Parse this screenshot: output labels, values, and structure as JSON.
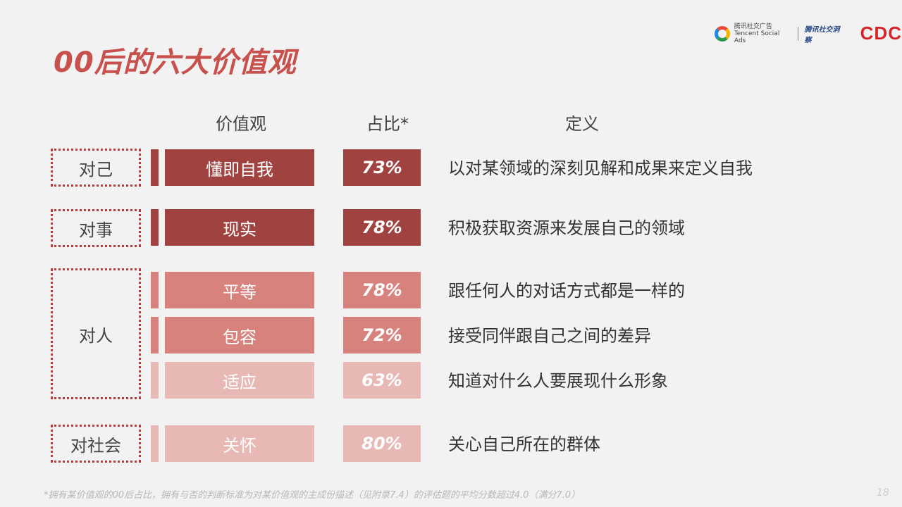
{
  "title": "00后的六大价值观",
  "logos": {
    "tencent_cn": "腾讯社交广告",
    "tencent_en": "Tencent Social Ads",
    "insight": "腾讯社交洞察",
    "cdc": "CDC"
  },
  "headers": {
    "value": "价值观",
    "ratio": "占比*",
    "definition": "定义"
  },
  "categories": [
    "对己",
    "对事",
    "对人",
    "对社会"
  ],
  "rows": [
    {
      "value": "懂即自我",
      "ratio": "73%",
      "definition": "以对某领域的深刻见解和成果来定义自我",
      "color": "#a04240"
    },
    {
      "value": "现实",
      "ratio": "78%",
      "definition": "积极获取资源来发展自己的领域",
      "color": "#a04240"
    },
    {
      "value": "平等",
      "ratio": "78%",
      "definition": "跟任何人的对话方式都是一样的",
      "color": "#d8827e"
    },
    {
      "value": "包容",
      "ratio": "72%",
      "definition": "接受同伴跟自己之间的差异",
      "color": "#d8827e"
    },
    {
      "value": "适应",
      "ratio": "63%",
      "definition": "知道对什么人要展现什么形象",
      "color": "#e8b8b5"
    },
    {
      "value": "关怀",
      "ratio": "80%",
      "definition": "关心自己所在的群体",
      "color": "#e8b8b5"
    }
  ],
  "footnote": "*拥有某价值观的00后占比，拥有与否的判断标准为对某价值观的主成份描述（见附录7.4）的评估题的平均分数超过4.0（满分7.0）",
  "page_number": "18"
}
